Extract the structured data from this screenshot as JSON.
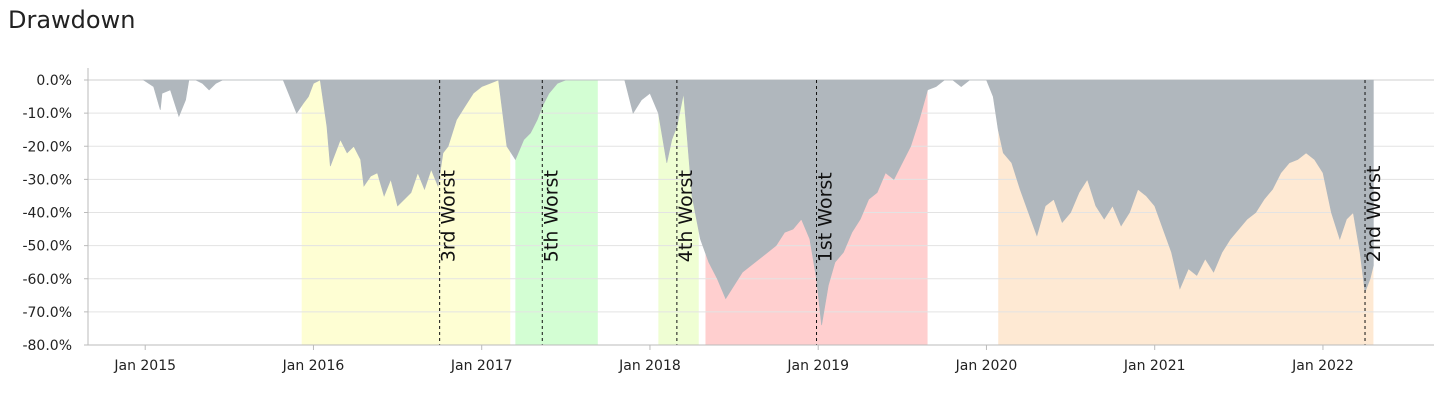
{
  "chart_data": {
    "type": "area",
    "title": "Drawdown",
    "xlabel": "",
    "ylabel": "",
    "ylim": [
      -80,
      0
    ],
    "y_ticks": [
      "0.0%",
      "-10.0%",
      "-20.0%",
      "-30.0%",
      "-40.0%",
      "-50.0%",
      "-60.0%",
      "-70.0%",
      "-80.0%"
    ],
    "y_tick_values": [
      0,
      -10,
      -20,
      -30,
      -40,
      -50,
      -60,
      -70,
      -80
    ],
    "x_ticks": [
      "Jan 2015",
      "Jan 2016",
      "Jan 2017",
      "Jan 2018",
      "Jan 2019",
      "Jan 2020",
      "Jan 2021",
      "Jan 2022"
    ],
    "x_tick_values": [
      2015.0,
      2016.0,
      2017.0,
      2018.0,
      2019.0,
      2020.0,
      2021.0,
      2022.0
    ],
    "xlim": [
      2014.66,
      2022.66
    ],
    "grid": "horizontal",
    "series": [
      {
        "color": "#b0b7bd",
        "x": [
          2014.99,
          2015.05,
          2015.09,
          2015.1,
          2015.15,
          2015.2,
          2015.24,
          2015.26,
          2015.3,
          2015.34,
          2015.38,
          2015.42,
          2015.46,
          2015.5,
          2015.56,
          2015.6,
          2015.64,
          2015.66,
          2015.7,
          2015.76,
          2015.82,
          2015.9,
          2015.94,
          2015.97,
          2016.0,
          2016.04,
          2016.08,
          2016.1,
          2016.16,
          2016.2,
          2016.24,
          2016.28,
          2016.3,
          2016.34,
          2016.38,
          2016.42,
          2016.46,
          2016.5,
          2016.54,
          2016.58,
          2016.62,
          2016.66,
          2016.7,
          2016.74,
          2016.77,
          2016.8,
          2016.85,
          2016.9,
          2016.95,
          2017.0,
          2017.05,
          2017.1,
          2017.15,
          2017.2,
          2017.25,
          2017.29,
          2017.33,
          2017.36,
          2017.4,
          2017.45,
          2017.5,
          2017.55,
          2017.6,
          2017.65,
          2017.7,
          2017.75,
          2017.8,
          2017.85,
          2017.9,
          2017.95,
          2018.0,
          2018.05,
          2018.1,
          2018.13,
          2018.16,
          2018.2,
          2018.25,
          2018.3,
          2018.35,
          2018.4,
          2018.45,
          2018.5,
          2018.55,
          2018.6,
          2018.65,
          2018.7,
          2018.75,
          2018.8,
          2018.85,
          2018.9,
          2018.95,
          2018.99,
          2019.02,
          2019.06,
          2019.1,
          2019.15,
          2019.2,
          2019.25,
          2019.3,
          2019.35,
          2019.4,
          2019.45,
          2019.5,
          2019.55,
          2019.6,
          2019.65,
          2019.7,
          2019.75,
          2019.8,
          2019.85,
          2019.9,
          2019.95,
          2020.0,
          2020.04,
          2020.07,
          2020.1,
          2020.15,
          2020.2,
          2020.25,
          2020.3,
          2020.35,
          2020.4,
          2020.45,
          2020.5,
          2020.55,
          2020.6,
          2020.65,
          2020.7,
          2020.75,
          2020.8,
          2020.85,
          2020.9,
          2020.95,
          2021.0,
          2021.05,
          2021.1,
          2021.15,
          2021.2,
          2021.25,
          2021.3,
          2021.35,
          2021.4,
          2021.45,
          2021.5,
          2021.55,
          2021.6,
          2021.65,
          2021.7,
          2021.75,
          2021.8,
          2021.85,
          2021.9,
          2021.95,
          2022.0,
          2022.05,
          2022.1,
          2022.14,
          2022.18,
          2022.22,
          2022.25,
          2022.28,
          2022.3
        ],
        "y": [
          0,
          -2,
          -9,
          -4,
          -3,
          -11,
          -6,
          0,
          0,
          -1,
          -3,
          -1,
          0,
          0,
          0,
          0,
          0,
          0,
          0,
          0,
          0,
          -10,
          -7,
          -5,
          -1,
          0,
          -14,
          -26,
          -18,
          -22,
          -20,
          -24,
          -32,
          -29,
          -28,
          -35,
          -30,
          -38,
          -36,
          -34,
          -28,
          -33,
          -27,
          -32,
          -22,
          -20,
          -12,
          -8,
          -4,
          -2,
          -1,
          0,
          -20,
          -24,
          -18,
          -16,
          -12,
          -8,
          -4,
          -1,
          0,
          0,
          0,
          0,
          0,
          0,
          0,
          0,
          -10,
          -6,
          -4,
          -10,
          -25,
          -18,
          -14,
          -4,
          -35,
          -48,
          -55,
          -60,
          -66,
          -62,
          -58,
          -56,
          -54,
          -52,
          -50,
          -46,
          -45,
          -42,
          -48,
          -60,
          -74,
          -62,
          -55,
          -52,
          -46,
          -42,
          -36,
          -34,
          -28,
          -30,
          -25,
          -20,
          -12,
          -3,
          -2,
          0,
          0,
          -2,
          0,
          0,
          0,
          -5,
          -15,
          -22,
          -25,
          -33,
          -40,
          -47,
          -38,
          -36,
          -43,
          -40,
          -34,
          -30,
          -38,
          -42,
          -38,
          -44,
          -40,
          -33,
          -35,
          -38,
          -45,
          -52,
          -63,
          -57,
          -59,
          -54,
          -58,
          -52,
          -48,
          -45,
          -42,
          -40,
          -36,
          -33,
          -28,
          -25,
          -24,
          -22,
          -24,
          -28,
          -40,
          -48,
          -42,
          -40,
          -52,
          -64,
          -60,
          -56
        ]
      }
    ],
    "drawdown_periods": [
      {
        "label": "1st Worst",
        "start": 2018.33,
        "valley": 2018.99,
        "end": 2019.65,
        "color": "#ffbfbf"
      },
      {
        "label": "2nd Worst",
        "start": 2020.07,
        "valley": 2022.25,
        "end": 2022.3,
        "color": "#fde2c4"
      },
      {
        "label": "3rd Worst",
        "start": 2015.93,
        "valley": 2016.75,
        "end": 2017.17,
        "color": "#fefec4"
      },
      {
        "label": "4th Worst",
        "start": 2018.05,
        "valley": 2018.16,
        "end": 2018.29,
        "color": "#eafec4"
      },
      {
        "label": "5th Worst",
        "start": 2017.2,
        "valley": 2017.36,
        "end": 2017.69,
        "color": "#c4fec4"
      }
    ]
  }
}
